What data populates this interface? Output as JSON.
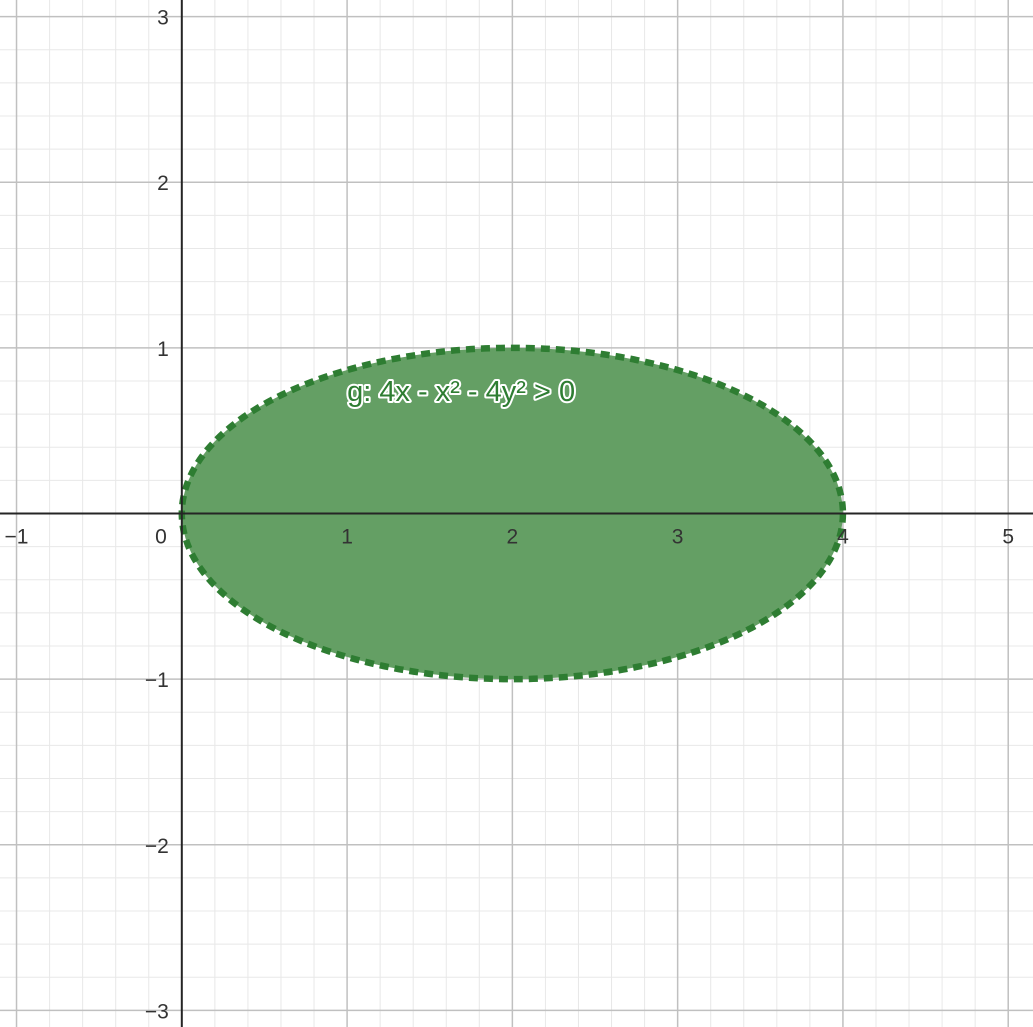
{
  "chart_data": {
    "type": "region",
    "title": "",
    "xlabel": "",
    "ylabel": "",
    "xlim": [
      -1.1,
      5.15
    ],
    "ylim": [
      -3.1,
      3.1
    ],
    "grid": true,
    "minor_grid": true,
    "x_ticks": [
      {
        "value": -1,
        "label": "−1"
      },
      {
        "value": 0,
        "label": "0"
      },
      {
        "value": 1,
        "label": "1"
      },
      {
        "value": 2,
        "label": "2"
      },
      {
        "value": 3,
        "label": "3"
      },
      {
        "value": 4,
        "label": "4"
      },
      {
        "value": 5,
        "label": "5"
      }
    ],
    "y_ticks": [
      {
        "value": 3,
        "label": "3"
      },
      {
        "value": 2,
        "label": "2"
      },
      {
        "value": 1,
        "label": "1"
      },
      {
        "value": -1,
        "label": "−1"
      },
      {
        "value": -2,
        "label": "−2"
      },
      {
        "value": -3,
        "label": "−3"
      }
    ],
    "region": {
      "name": "g",
      "label": "g: 4x - x² - 4y² > 0",
      "inequality": "4x - x² - 4y² > 0",
      "center": [
        2,
        0
      ],
      "semi_axis_x": 2,
      "semi_axis_y": 1,
      "boundary_style": "dashed",
      "label_anchor": [
        1.0,
        0.68
      ],
      "fill_color": "#649f64",
      "stroke_color": "#2e7d32",
      "label_color": "#2e7d32"
    },
    "colors": {
      "major_grid": "#c0c0c0",
      "minor_grid": "#e8e8e8",
      "axis": "#252525"
    }
  }
}
